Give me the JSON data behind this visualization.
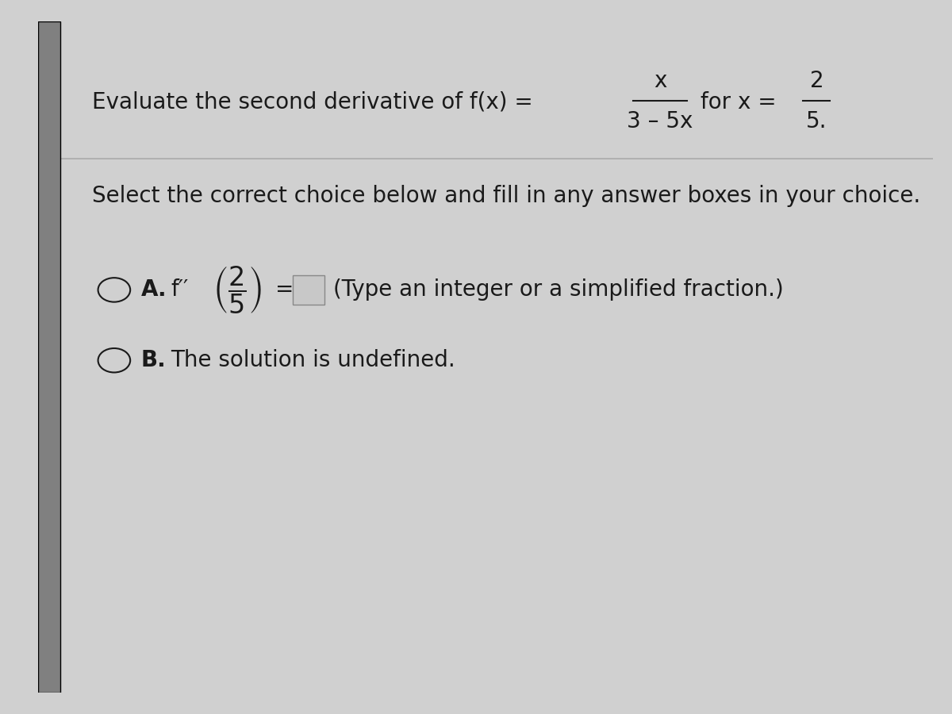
{
  "bg_color": "#d0d0d0",
  "left_bar_color": "#808080",
  "main_bg_color": "#e8e8e8",
  "title_line1": "Evaluate the second derivative of f(x) =",
  "fraction_num": "x",
  "fraction_den": "3 – 5x",
  "for_x_text": "for x =",
  "x_val_num": "2",
  "x_val_den": "5",
  "separator_text": "Select the correct choice below and fill in any answer boxes in your choice.",
  "option_a_prefix": "A.",
  "option_a_func": "f′′",
  "option_a_frac_num": "2",
  "option_a_frac_den": "5",
  "option_a_equals": "=",
  "option_a_suffix": "(Type an integer or a simplified fraction.)",
  "option_b_prefix": "B.",
  "option_b_text": "The solution is undefined.",
  "font_size_main": 20,
  "font_size_options": 20,
  "text_color": "#1a1a1a"
}
